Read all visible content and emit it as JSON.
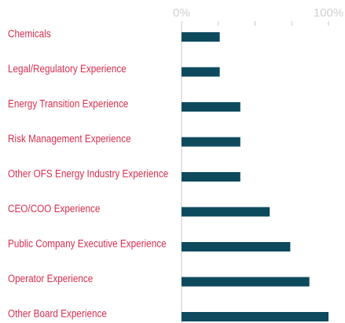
{
  "chart_data": {
    "type": "hbar",
    "categories": [
      "Chemicals",
      "Legal/Regulatory Experience",
      "Energy Transition Experience",
      "Risk Management Experience",
      "Other OFS Energy Industry Experience",
      "CEO/COO Experience",
      "Public Company Executive Experience",
      "Operator Experience",
      "Other Board Experience"
    ],
    "values": [
      26,
      26,
      40,
      40,
      40,
      60,
      74,
      87,
      100
    ],
    "color": "#0d4a5e",
    "label_color": "#d62e4f",
    "xlim": [
      0,
      100
    ],
    "xticks": [
      {
        "value": 0,
        "label": "0%"
      },
      {
        "value": 100,
        "label": "100%"
      }
    ],
    "minor_xticks": [
      25,
      50,
      75
    ]
  }
}
